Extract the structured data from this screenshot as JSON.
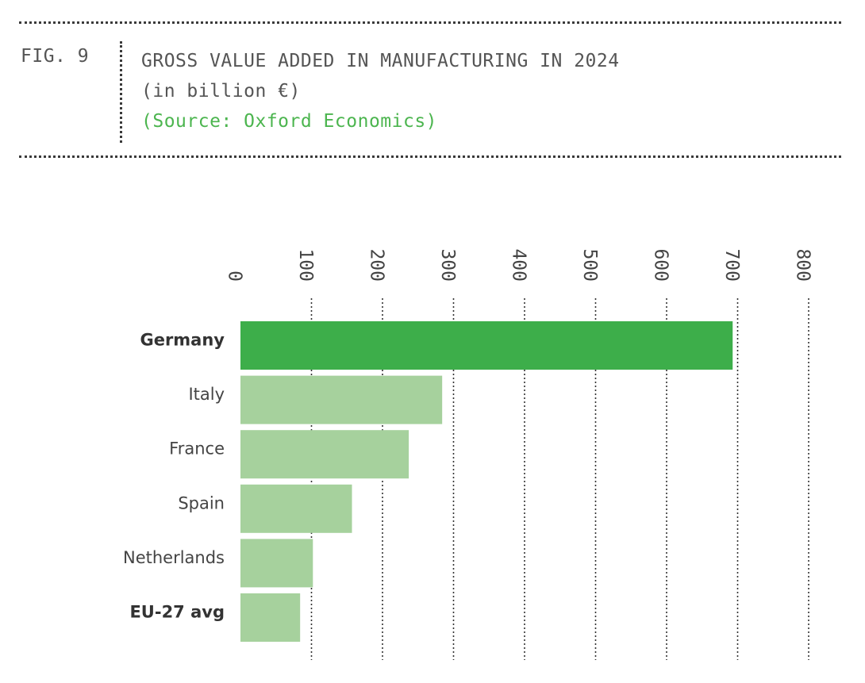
{
  "header": {
    "fig_label": "FIG. 9",
    "title": "GROSS VALUE ADDED IN MANUFACTURING IN 2024",
    "unit": "(in billion €)",
    "source": "(Source: Oxford Economics)"
  },
  "colors": {
    "highlight": "#3dae4a",
    "bar": "#a6d19d",
    "text": "#444444",
    "source": "#4cb54f"
  },
  "chart_data": {
    "type": "bar",
    "orientation": "horizontal",
    "title": "GROSS VALUE ADDED IN MANUFACTURING IN 2024",
    "subtitle": "(in billion €)",
    "source": "(Source: Oxford Economics)",
    "categories": [
      "Germany",
      "Italy",
      "France",
      "Spain",
      "Netherlands",
      "EU-27 avg"
    ],
    "values": [
      693,
      284,
      237,
      157,
      102,
      84
    ],
    "highlighted": [
      "Germany"
    ],
    "bold_labels": [
      "Germany",
      "EU-27 avg"
    ],
    "xlim": [
      0,
      800
    ],
    "xticks": [
      0,
      100,
      200,
      300,
      400,
      500,
      600,
      700,
      800
    ],
    "tick_labels_rotated": true,
    "grid": true,
    "legend": "none"
  }
}
